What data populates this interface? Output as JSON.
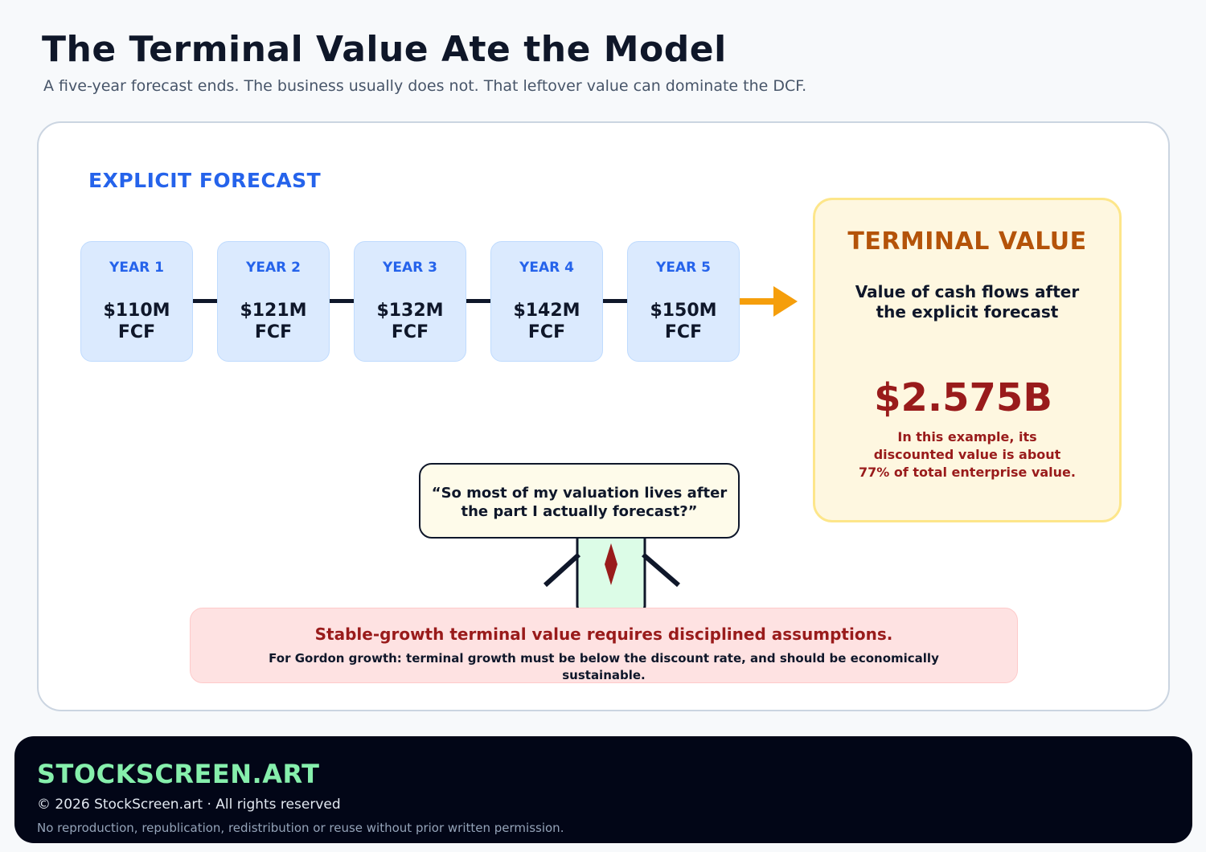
{
  "header": {
    "title": "The Terminal Value Ate the Model",
    "subtitle": "A five-year forecast ends. The business usually does not. That leftover value can dominate the DCF."
  },
  "forecast": {
    "label": "EXPLICIT FORECAST",
    "years": [
      {
        "label": "YEAR 1",
        "value": "$110M",
        "unit": "FCF"
      },
      {
        "label": "YEAR 2",
        "value": "$121M",
        "unit": "FCF"
      },
      {
        "label": "YEAR 3",
        "value": "$132M",
        "unit": "FCF"
      },
      {
        "label": "YEAR 4",
        "value": "$142M",
        "unit": "FCF"
      },
      {
        "label": "YEAR 5",
        "value": "$150M",
        "unit": "FCF"
      }
    ]
  },
  "terminal": {
    "title": "TERMINAL VALUE",
    "description": "Value of cash flows after the explicit forecast",
    "value": "$2.575B",
    "note": "In this example, its discounted value is about 77% of total enterprise value."
  },
  "quote": "“So most of my valuation lives after the part I actually forecast?”",
  "warning": {
    "title": "Stable-growth terminal value requires disciplined assumptions.",
    "body": "For Gordon growth: terminal growth must be below the discount rate, and should be economically sustainable."
  },
  "footer": {
    "brand": "STOCKSCREEN.ART",
    "copyright": "© 2026 StockScreen.art · All rights reserved",
    "notice": "No reproduction, republication, redistribution or reuse without prior written permission."
  },
  "colors": {
    "accent_blue": "#2563eb",
    "terminal_orange": "#b45309",
    "arrow_orange": "#f59e0b",
    "warning_red": "#991b1b",
    "brand_green": "#86efac"
  }
}
